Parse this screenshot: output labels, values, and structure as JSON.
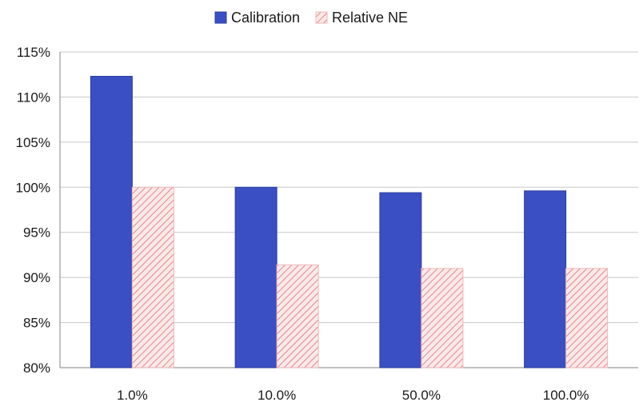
{
  "chart_data": {
    "type": "bar",
    "categories": [
      "1.0%",
      "10.0%",
      "50.0%",
      "100.0%"
    ],
    "series": [
      {
        "name": "Calibration",
        "values": [
          112.3,
          100.0,
          99.4,
          99.6
        ],
        "color": "#3a4fc4",
        "pattern": "solid"
      },
      {
        "name": "Relative NE",
        "values": [
          100.0,
          91.4,
          91.0,
          91.0
        ],
        "color": "#e07070",
        "pattern": "diagonal-hatch"
      }
    ],
    "y_ticks": [
      "80%",
      "85%",
      "90%",
      "95%",
      "100%",
      "105%",
      "110%",
      "115%"
    ],
    "ylim": [
      80,
      115
    ],
    "y_unit": "%",
    "grid": true,
    "legend_position": "top-center",
    "title": "",
    "xlabel": "",
    "ylabel": ""
  }
}
